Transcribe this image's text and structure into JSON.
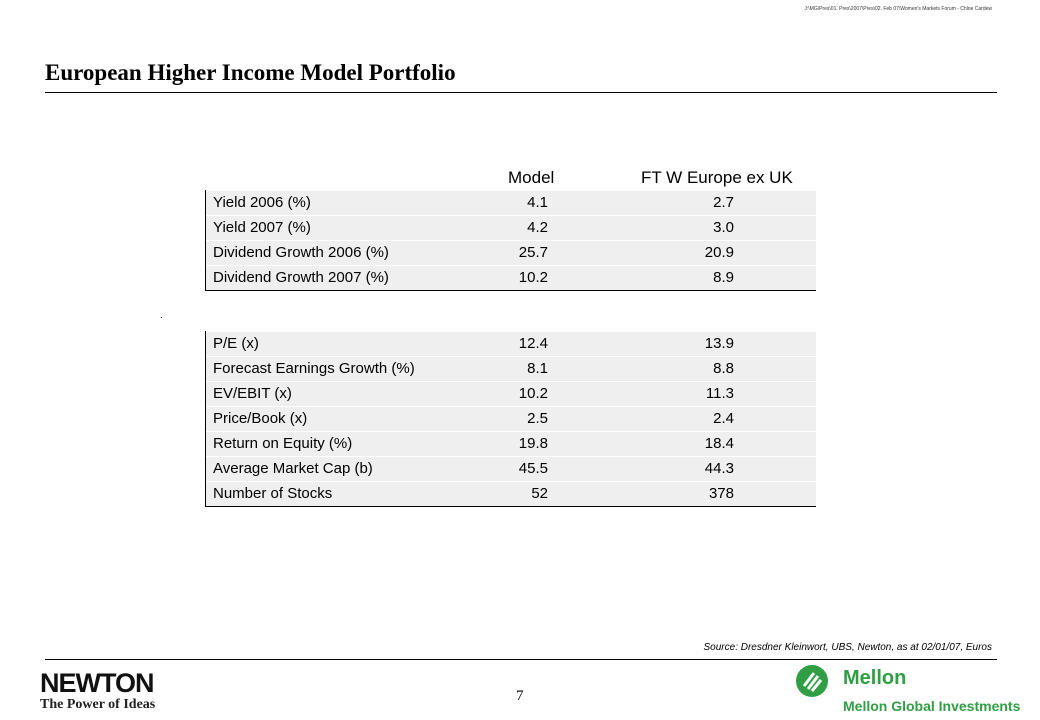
{
  "header": {
    "file_path": "J:\\MG\\Pres\\01. Pres\\2007\\Pres\\02. Feb 07\\Women's Markets Forum - Chloe Cardew",
    "title": "European Higher Income Model Portfolio"
  },
  "table_1": {
    "columns": [
      "Model",
      "FT W Europe ex UK"
    ],
    "rows": [
      [
        "Yield 2006 (%)",
        "4.1",
        "2.7"
      ],
      [
        "Yield 2007 (%)",
        "4.2",
        "3.0"
      ],
      [
        "Dividend Growth 2006 (%)",
        "25.7",
        "20.9"
      ],
      [
        "Dividend Growth 2007 (%)",
        "10.2",
        "8.9"
      ]
    ]
  },
  "stray_mark": ".",
  "table_2": {
    "rows": [
      [
        "P/E (x)",
        "12.4",
        "13.9"
      ],
      [
        "Forecast Earnings Growth (%)",
        "8.1",
        "8.8"
      ],
      [
        "EV/EBIT (x)",
        "10.2",
        "11.3"
      ],
      [
        "Price/Book (x)",
        "2.5",
        "2.4"
      ],
      [
        "Return on Equity (%)",
        "19.8",
        "18.4"
      ],
      [
        "Average Market Cap (b)",
        "45.5",
        "44.3"
      ],
      [
        "Number of Stocks",
        "52",
        "378"
      ]
    ]
  },
  "footer": {
    "source": "Source: Dresdner Kleinwort, UBS, Newton, as at 02/01/07, Euros",
    "page_number": "7",
    "newton_logo": "NEWTON",
    "newton_tagline": "The Power of Ideas",
    "mellon_logo": "Mellon",
    "mellon_name": "Mellon Global Investments"
  }
}
